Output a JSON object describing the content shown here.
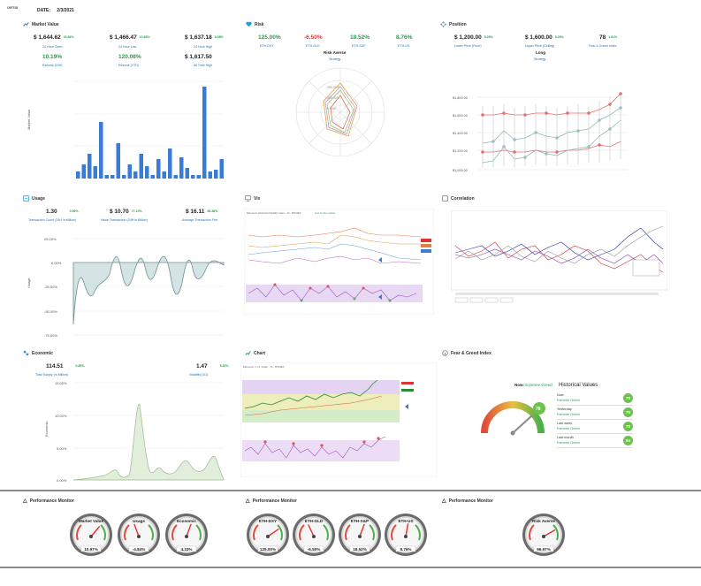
{
  "header": {
    "logo_text": "ORTIS",
    "date_label": "DATE:",
    "date_value": "2/3/2021"
  },
  "market_value": {
    "title": "Market Value",
    "stats": [
      {
        "value": "$ 1,644.62",
        "pct": "23.84%",
        "caption": "24 Hour Open"
      },
      {
        "value": "$ 1,466.47",
        "pct": "10.65%",
        "caption": "24 Hour Low"
      },
      {
        "value": "$ 1,637.18",
        "pct": "6.08%",
        "caption": "24 Hour High"
      },
      {
        "value": "10.19%",
        "pct": "",
        "caption": "Returns (24H)"
      },
      {
        "value": "120.08%",
        "pct": "",
        "caption": "Returns (YTD)"
      },
      {
        "value": "$ 1,617.50",
        "pct": "",
        "caption": "All Time High"
      }
    ],
    "ylabel": "Market Value"
  },
  "risk": {
    "title": "Risk",
    "stats": [
      {
        "value": "125.00%",
        "caption": "ETH-DXY",
        "color": "green"
      },
      {
        "value": "-6.50%",
        "caption": "ETH-GLD",
        "color": "red"
      },
      {
        "value": "18.52%",
        "caption": "ETH-S&P",
        "color": "green"
      },
      {
        "value": "8.76%",
        "caption": "ETH-US",
        "color": "green"
      }
    ],
    "sub_value": "Risk Averse",
    "sub_caption": "Strategy",
    "radar_labels": [
      "200.00%",
      "100.00%",
      "0.00%"
    ]
  },
  "position": {
    "title": "Position",
    "stats": [
      {
        "value": "$ 1,200.00",
        "pct": "5.00%",
        "caption": "Lower Price (Floor)"
      },
      {
        "value": "$ 1,600.00",
        "pct": "0.00%",
        "caption": "Upper Price (Ceiling)"
      },
      {
        "value": "78",
        "pct": "1.61%",
        "caption": "Fear & Greed Index"
      }
    ],
    "strategy_value": "Long",
    "strategy_caption": "Strategy",
    "yticks": [
      "$1,800.00",
      "$1,600.00",
      "$1,400.00",
      "$1,200.00",
      "$1,000.00"
    ]
  },
  "usage": {
    "title": "Usage",
    "stats": [
      {
        "value": "1.30",
        "pct": "0.00%",
        "caption": "Transaction Count (24H in Million)"
      },
      {
        "value": "$ 10.70",
        "pct": "77.19%",
        "caption": "Value Transaction (24H in Billion)"
      },
      {
        "value": "$ 16.11",
        "pct": "26.38%",
        "caption": "Average Transaction Fee"
      }
    ],
    "ylabel": "Usage",
    "yticks": [
      "25.00%",
      "0.00%",
      "-25.00%",
      "-50.00%",
      "-75.00%"
    ]
  },
  "vix": {
    "title": "Vix",
    "chart_header": "Ethereum Historical Volatility Index · 1h · BITMEX",
    "legend_text": "Live on the market"
  },
  "correlation": {
    "title": "Correlation"
  },
  "economic": {
    "title": "Economic",
    "stats": [
      {
        "value": "114.51",
        "pct": "0.85%",
        "caption": "Total Supply (In Million)"
      },
      {
        "value": "1.47",
        "pct": "5.32%",
        "caption": "Volatility (1D)"
      }
    ],
    "ylabel": "Economic",
    "yticks": [
      "15.00%",
      "10.00%",
      "5.00%",
      "0.00%"
    ]
  },
  "chart": {
    "title": "Chart",
    "chart_header": "Ethereum / U.S. Dollar · 1h · BITMEX"
  },
  "fear_greed": {
    "title": "Fear & Greed Index",
    "now_label": "Now:",
    "now_value": "Extreme Greed",
    "gauge_value": "78",
    "hist_title": "Historical Values",
    "history": [
      {
        "label": "Now",
        "value": "Extreme Greed",
        "score": "78"
      },
      {
        "label": "Yesterday",
        "value": "Extreme Greed",
        "score": "79"
      },
      {
        "label": "Last week",
        "value": "Extreme Greed",
        "score": "78"
      },
      {
        "label": "Last month",
        "value": "Extreme Greed",
        "score": "94"
      }
    ]
  },
  "performance": {
    "title": "Performance Monitor",
    "gauges_a": [
      {
        "label": "Market Value",
        "value": "10.97%"
      },
      {
        "label": "Usage",
        "value": "-4.84%"
      },
      {
        "label": "Economic",
        "value": "4.23%"
      }
    ],
    "gauges_b": [
      {
        "label": "ETH-DXY",
        "value": "125.00%"
      },
      {
        "label": "ETH-GLD",
        "value": "-6.50%"
      },
      {
        "label": "ETH-S&P",
        "value": "18.52%"
      },
      {
        "label": "ETH-US",
        "value": "8.76%"
      }
    ],
    "gauges_c": [
      {
        "label": "Risk Averse",
        "value": "96.97%"
      }
    ]
  },
  "colors": {
    "accent_blue": "#3a7bd5",
    "green": "#2a9a4a",
    "red": "#d33333",
    "purple": "#d8c8f0"
  }
}
